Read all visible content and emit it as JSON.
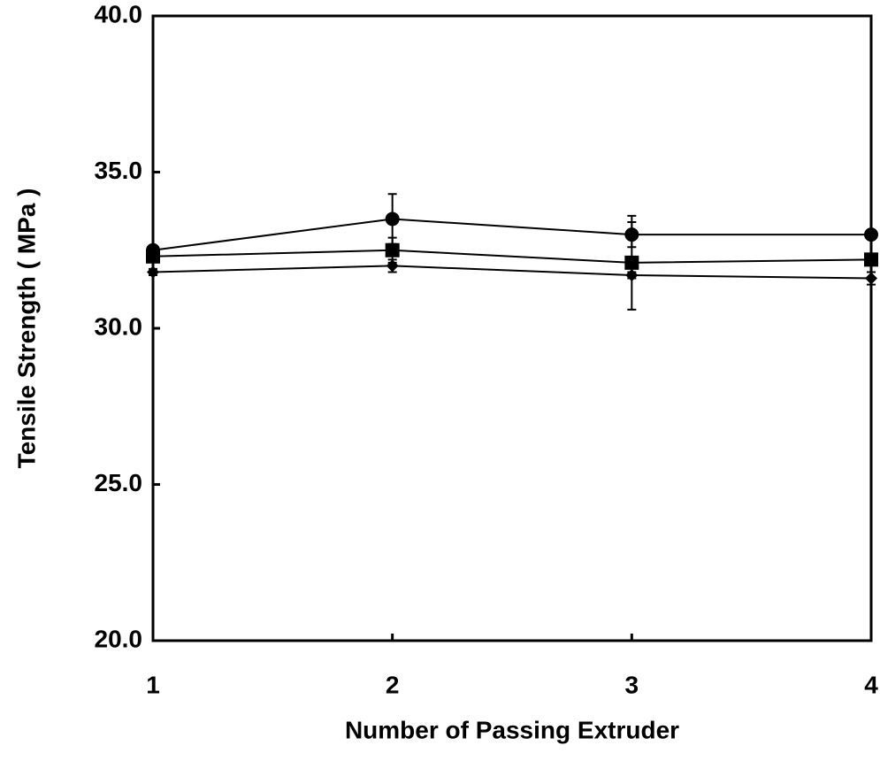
{
  "chart_data": {
    "type": "line",
    "x_label": "Number of Passing Extruder",
    "y_label": "Tensile Strength ( MPa )",
    "x": [
      1,
      2,
      3,
      4
    ],
    "xlim": [
      1,
      4
    ],
    "xticks": [
      1,
      2,
      3,
      4
    ],
    "ylim": [
      20,
      40
    ],
    "yticks": [
      {
        "value": 20,
        "label": "20.0"
      },
      {
        "value": 25,
        "label": "25.0"
      },
      {
        "value": 30,
        "label": "30.0"
      },
      {
        "value": 35,
        "label": "35.0"
      },
      {
        "value": 40,
        "label": "40.0"
      }
    ],
    "series": [
      {
        "marker": "circle",
        "color": "#000000",
        "values": [
          32.5,
          33.5,
          33.0,
          33.0
        ],
        "errors": [
          0.1,
          0.8,
          0.4,
          0.1
        ]
      },
      {
        "marker": "square",
        "color": "#000000",
        "values": [
          32.3,
          32.5,
          32.1,
          32.2
        ],
        "errors": [
          0.1,
          0.4,
          1.5,
          0.1
        ]
      },
      {
        "marker": "diamond",
        "color": "#000000",
        "values": [
          31.8,
          32.0,
          31.7,
          31.6
        ],
        "errors": [
          0.1,
          0.2,
          0.1,
          0.2
        ]
      }
    ]
  }
}
